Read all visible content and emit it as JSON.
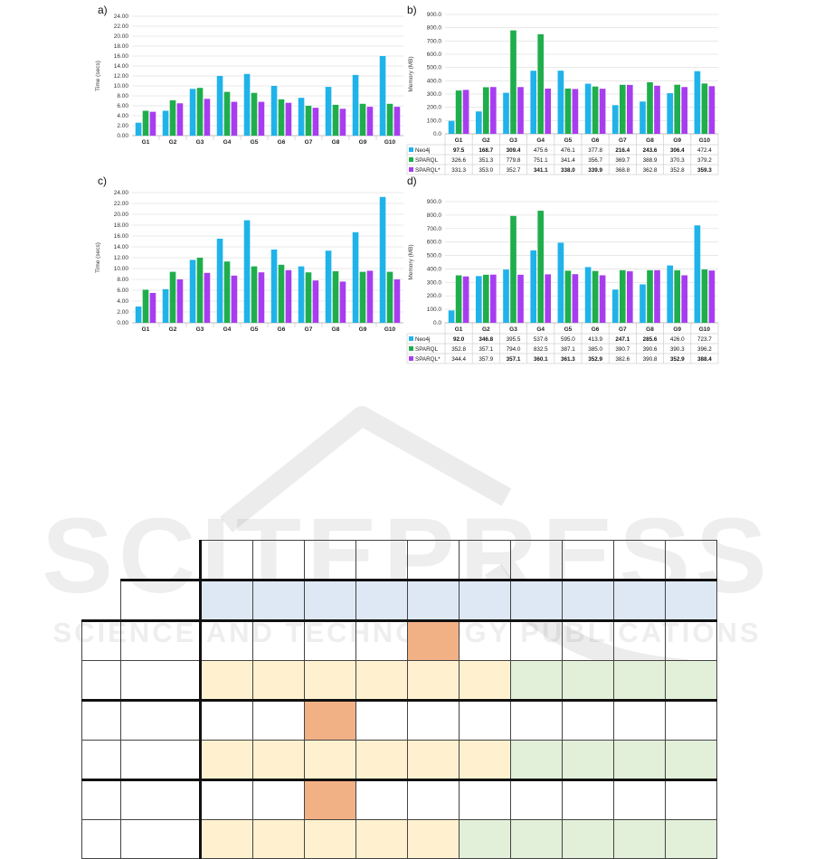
{
  "labels": {
    "a": "a)",
    "b": "b)",
    "c": "c)",
    "d": "d)"
  },
  "watermark": {
    "brand": "SCITEPRESS",
    "tagline": "SCIENCE AND TECHNOLOGY PUBLICATIONS"
  },
  "colors": {
    "neo4j": "#1fb3ea",
    "sparql": "#1fae4c",
    "sparql_star": "#a83df0"
  },
  "chart_data": [
    {
      "id": "a",
      "type": "bar",
      "ylabel": "Time (secs)",
      "ylim": [
        0,
        24
      ],
      "ytick_step": 2,
      "ytick_decimals": 2,
      "categories": [
        "G1",
        "G2",
        "G3",
        "G4",
        "G5",
        "G6",
        "G7",
        "G8",
        "G9",
        "G10"
      ],
      "series": [
        {
          "values": [
            2.6,
            5.0,
            9.4,
            12.0,
            12.4,
            10.0,
            7.6,
            9.8,
            12.2,
            16.0
          ]
        },
        {
          "values": [
            5.0,
            7.1,
            9.6,
            8.8,
            8.6,
            7.3,
            6.0,
            6.2,
            6.4,
            6.4
          ]
        },
        {
          "values": [
            4.8,
            6.5,
            7.4,
            6.8,
            6.8,
            6.6,
            5.6,
            5.4,
            5.8,
            5.8
          ]
        }
      ],
      "grid": true
    },
    {
      "id": "b",
      "type": "bar",
      "ylabel": "Memory (MB)",
      "ylim": [
        0,
        900
      ],
      "ytick_step": 100,
      "ytick_decimals": 1,
      "categories": [
        "G1",
        "G2",
        "G3",
        "G4",
        "G5",
        "G6",
        "G7",
        "G8",
        "G9",
        "G10"
      ],
      "series": [
        {
          "name": "Neo4j",
          "values": [
            "97.5",
            "168.7",
            "309.4",
            "475.6",
            "476.1",
            "377.8",
            "216.4",
            "243.6",
            "306.4",
            "472.4"
          ],
          "bold": [
            0,
            1,
            2,
            6,
            7,
            8
          ]
        },
        {
          "name": "SPARQL",
          "values": [
            "326.6",
            "351.3",
            "779.8",
            "751.1",
            "341.4",
            "356.7",
            "369.7",
            "388.9",
            "370.3",
            "379.2"
          ],
          "bold": []
        },
        {
          "name": "SPARQL*",
          "values": [
            "331.3",
            "353.0",
            "352.7",
            "341.1",
            "338.0",
            "339.9",
            "368.8",
            "362.8",
            "352.8",
            "359.3"
          ],
          "bold": [
            3,
            4,
            5,
            9
          ]
        }
      ],
      "grid": true,
      "data_table": true
    },
    {
      "id": "c",
      "type": "bar",
      "ylabel": "Time (secs)",
      "ylim": [
        0,
        24
      ],
      "ytick_step": 2,
      "ytick_decimals": 2,
      "categories": [
        "G1",
        "G2",
        "G3",
        "G4",
        "G5",
        "G6",
        "G7",
        "G8",
        "G9",
        "G10"
      ],
      "series": [
        {
          "values": [
            3.0,
            6.2,
            11.6,
            15.5,
            18.9,
            13.5,
            10.4,
            13.3,
            16.7,
            23.2
          ]
        },
        {
          "values": [
            6.1,
            9.4,
            12.0,
            11.3,
            10.4,
            10.7,
            9.3,
            9.5,
            9.4,
            9.4
          ]
        },
        {
          "values": [
            5.5,
            8.0,
            9.2,
            8.7,
            9.3,
            9.7,
            7.8,
            7.6,
            9.6,
            8.0
          ]
        }
      ],
      "grid": true
    },
    {
      "id": "d",
      "type": "bar",
      "ylabel": "Memory (MB)",
      "ylim": [
        0,
        900
      ],
      "ytick_step": 100,
      "ytick_decimals": 1,
      "categories": [
        "G1",
        "G2",
        "G3",
        "G4",
        "G5",
        "G6",
        "G7",
        "G8",
        "G9",
        "G10"
      ],
      "series": [
        {
          "name": "Neo4j",
          "values": [
            "92.0",
            "346.8",
            "395.5",
            "537.6",
            "595.0",
            "413.9",
            "247.1",
            "285.6",
            "426.0",
            "723.7"
          ],
          "bold": [
            0,
            1,
            6,
            7
          ]
        },
        {
          "name": "SPARQL",
          "values": [
            "352.8",
            "357.1",
            "794.0",
            "832.5",
            "387.1",
            "385.0",
            "390.7",
            "390.6",
            "390.3",
            "396.2"
          ],
          "bold": []
        },
        {
          "name": "SPARQL*",
          "values": [
            "344.4",
            "357.9",
            "357.1",
            "360.1",
            "361.3",
            "352.9",
            "382.6",
            "390.8",
            "352.9",
            "388.4"
          ],
          "bold": [
            2,
            3,
            4,
            5,
            8,
            9
          ]
        }
      ],
      "grid": true,
      "data_table": true
    }
  ],
  "table": {
    "rows": [
      {
        "side": "",
        "head": "",
        "cells": [
          "",
          "",
          "",
          "",
          "",
          "",
          "",
          "",
          "",
          ""
        ],
        "fills": [
          "",
          "",
          "",
          "",
          "",
          "",
          "",
          "",
          "",
          ""
        ]
      },
      {
        "side": "",
        "head": "",
        "cells": [
          "",
          "",
          "",
          "",
          "",
          "",
          "",
          "",
          "",
          ""
        ],
        "fills": [
          "blue",
          "blue",
          "blue",
          "blue",
          "blue",
          "blue",
          "blue",
          "blue",
          "blue",
          "blue"
        ]
      },
      {
        "side": "",
        "head": "",
        "cells": [
          "",
          "",
          "",
          "",
          "",
          "",
          "",
          "",
          "",
          ""
        ],
        "fills": [
          "",
          "",
          "",
          "",
          "orange",
          "",
          "",
          "",
          "",
          ""
        ]
      },
      {
        "side": "",
        "head": "",
        "cells": [
          "",
          "",
          "",
          "",
          "",
          "",
          "",
          "",
          "",
          ""
        ],
        "fills": [
          "yellow",
          "yellow",
          "yellow",
          "yellow",
          "yellow",
          "yellow",
          "green",
          "green",
          "green",
          "green"
        ]
      },
      {
        "side": "",
        "head": "",
        "cells": [
          "",
          "",
          "",
          "",
          "",
          "",
          "",
          "",
          "",
          ""
        ],
        "fills": [
          "",
          "",
          "orange",
          "",
          "",
          "",
          "",
          "",
          "",
          ""
        ]
      },
      {
        "side": "",
        "head": "",
        "cells": [
          "",
          "",
          "",
          "",
          "",
          "",
          "",
          "",
          "",
          ""
        ],
        "fills": [
          "yellow",
          "yellow",
          "yellow",
          "yellow",
          "yellow",
          "yellow",
          "green",
          "green",
          "green",
          "green"
        ]
      },
      {
        "side": "",
        "head": "",
        "cells": [
          "",
          "",
          "",
          "",
          "",
          "",
          "",
          "",
          "",
          ""
        ],
        "fills": [
          "",
          "",
          "orange",
          "",
          "",
          "",
          "",
          "",
          "",
          ""
        ]
      },
      {
        "side": "",
        "head": "",
        "cells": [
          "",
          "",
          "",
          "",
          "",
          "",
          "",
          "",
          "",
          ""
        ],
        "fills": [
          "yellow",
          "yellow",
          "yellow",
          "yellow",
          "yellow",
          "green",
          "green",
          "green",
          "green",
          "green"
        ]
      }
    ]
  }
}
